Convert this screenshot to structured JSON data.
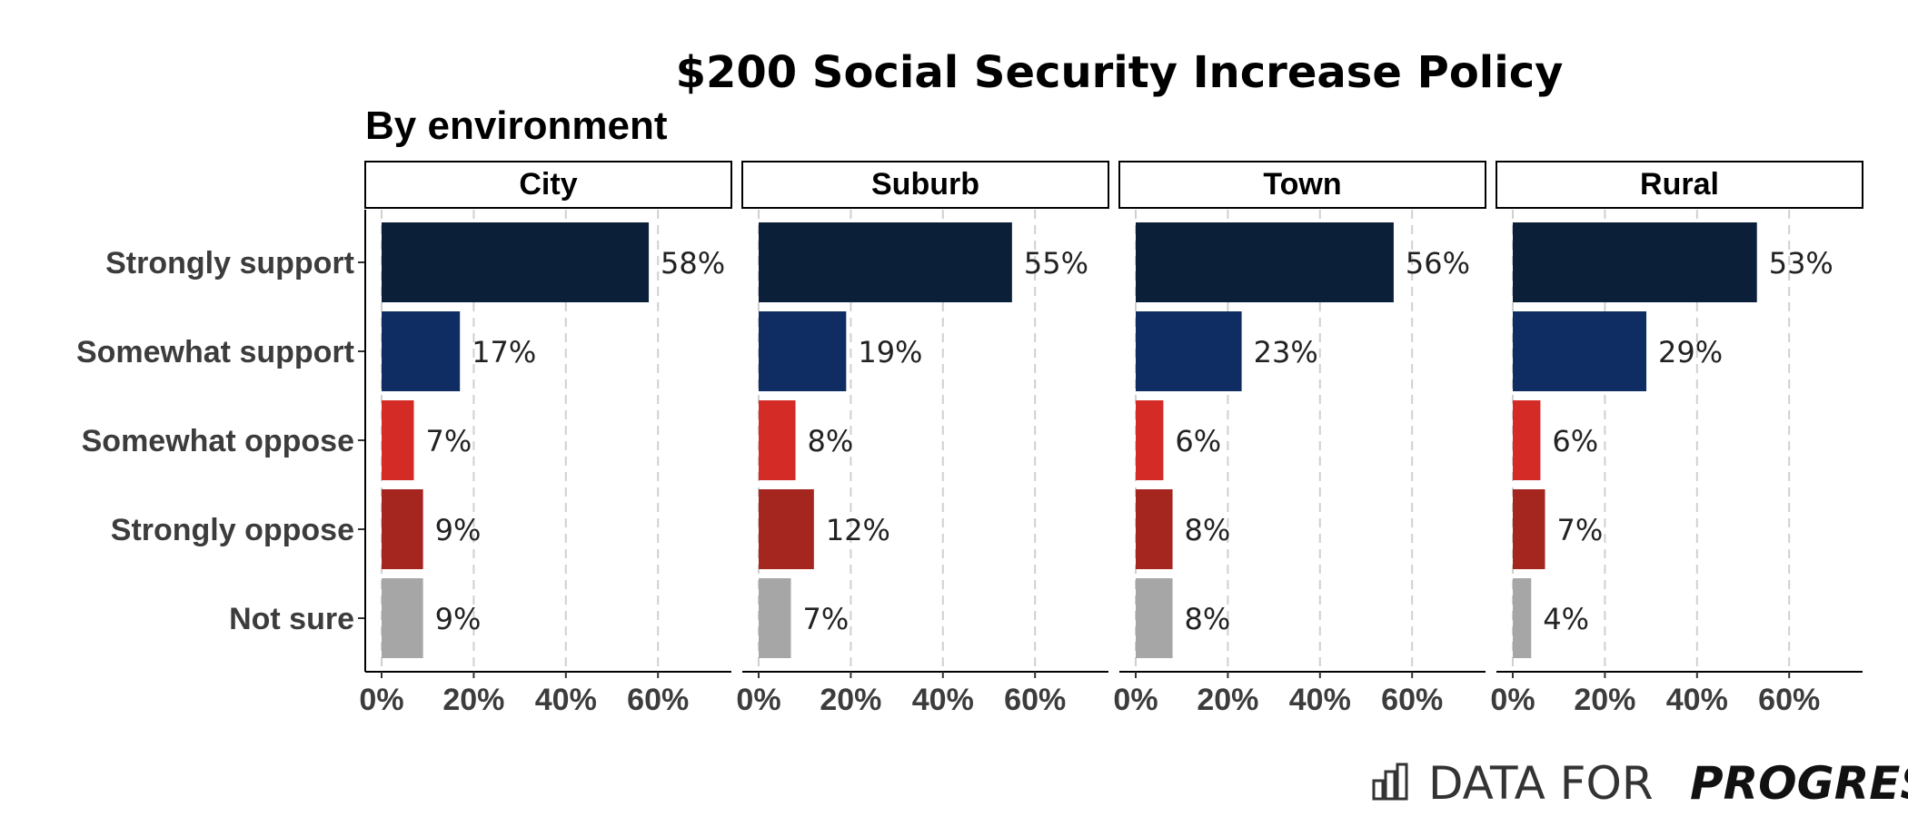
{
  "chart_data": {
    "type": "bar",
    "orientation": "horizontal",
    "title": "$200 Social Security Increase Policy",
    "subtitle": "By environment",
    "categories": [
      "Strongly support",
      "Somewhat support",
      "Somewhat oppose",
      "Strongly oppose",
      "Not sure"
    ],
    "category_colors": [
      "#0b1f38",
      "#0f2d62",
      "#d52b27",
      "#a5261f",
      "#a6a6a6"
    ],
    "panels": [
      {
        "name": "City",
        "values": [
          58,
          17,
          7,
          9,
          9
        ],
        "labels": [
          "58%",
          "17%",
          "7%",
          "9%",
          "9%"
        ]
      },
      {
        "name": "Suburb",
        "values": [
          55,
          19,
          8,
          12,
          7
        ],
        "labels": [
          "55%",
          "19%",
          "8%",
          "12%",
          "7%"
        ]
      },
      {
        "name": "Town",
        "values": [
          56,
          23,
          6,
          8,
          8
        ],
        "labels": [
          "56%",
          "23%",
          "6%",
          "8%",
          "8%"
        ]
      },
      {
        "name": "Rural",
        "values": [
          53,
          29,
          6,
          7,
          4
        ],
        "labels": [
          "53%",
          "29%",
          "6%",
          "7%",
          "4%"
        ]
      }
    ],
    "x_ticks": [
      0,
      20,
      40,
      60
    ],
    "x_tick_labels": [
      "0%",
      "20%",
      "40%",
      "60%"
    ],
    "xlim": [
      0,
      75
    ],
    "grid": "vertical dashed",
    "xlabel": "",
    "ylabel": ""
  },
  "logo": {
    "text_regular": "DATA FOR",
    "text_bold": "PROGRESS"
  }
}
